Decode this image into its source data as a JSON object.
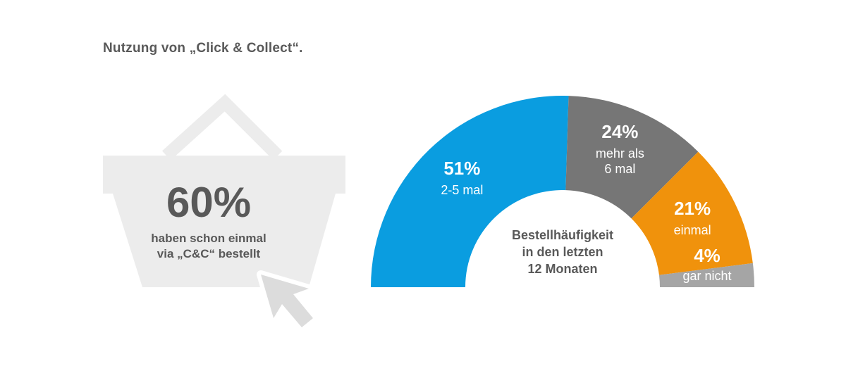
{
  "title": "Nutzung von „Click & Collect“.",
  "basket": {
    "percent": "60%",
    "line1": "haben schon einmal",
    "line2": "via „C&C“ bestellt"
  },
  "colors": {
    "blue": "#0a9de0",
    "dark_gray": "#767676",
    "orange": "#f0920c",
    "light_gray": "#a5a5a5",
    "basket_gray": "#ececec"
  },
  "chart_data": {
    "type": "pie",
    "center_label": [
      "Bestellhäufigkeit",
      "in den letzten",
      "12 Monaten"
    ],
    "slices": [
      {
        "value": 51,
        "label": "51%",
        "category": [
          "2-5 mal"
        ],
        "color": "#0a9de0"
      },
      {
        "value": 24,
        "label": "24%",
        "category": [
          "mehr als",
          "6 mal"
        ],
        "color": "#767676"
      },
      {
        "value": 21,
        "label": "21%",
        "category": [
          "einmal"
        ],
        "color": "#f0920c"
      },
      {
        "value": 4,
        "label": "4%",
        "category": [
          "gar nicht"
        ],
        "color": "#a5a5a5"
      }
    ]
  }
}
